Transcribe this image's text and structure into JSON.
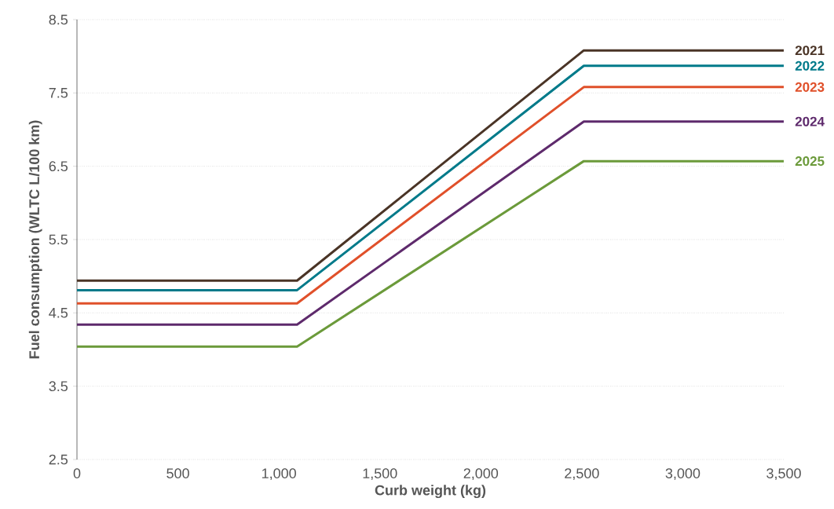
{
  "chart_data": {
    "type": "line",
    "xlabel": "Curb weight (kg)",
    "ylabel": "Fuel consumption (WLTC L/100 km)",
    "xlim": [
      0,
      3500
    ],
    "ylim": [
      2.5,
      8.5
    ],
    "xticks": [
      0,
      500,
      {
        "value": 1000,
        "label": "1,000"
      },
      {
        "value": 1500,
        "label": "1,500"
      },
      {
        "value": 2000,
        "label": "2,000"
      },
      {
        "value": 2500,
        "label": "2,500"
      },
      {
        "value": 3000,
        "label": "3,000"
      },
      {
        "value": 3500,
        "label": "3,500"
      }
    ],
    "yticks": [
      2.5,
      3.5,
      4.5,
      5.5,
      6.5,
      7.5,
      8.5
    ],
    "grid": "y",
    "legend": false,
    "marker": "none",
    "line_style": "solid",
    "series": [
      {
        "name": "2021",
        "color": "#4a3426",
        "x": [
          0,
          1090,
          2510,
          3500
        ],
        "values": [
          4.94,
          4.94,
          8.08,
          8.08
        ]
      },
      {
        "name": "2022",
        "color": "#007a8a",
        "x": [
          0,
          1090,
          2510,
          3500
        ],
        "values": [
          4.81,
          4.81,
          7.87,
          7.87
        ]
      },
      {
        "name": "2023",
        "color": "#e0502a",
        "x": [
          0,
          1090,
          2510,
          3500
        ],
        "values": [
          4.63,
          4.63,
          7.58,
          7.58
        ]
      },
      {
        "name": "2024",
        "color": "#5e2a6c",
        "x": [
          0,
          1090,
          2510,
          3500
        ],
        "values": [
          4.34,
          4.34,
          7.11,
          7.11
        ]
      },
      {
        "name": "2025",
        "color": "#6b9a3a",
        "x": [
          0,
          1090,
          2510,
          3500
        ],
        "values": [
          4.04,
          4.04,
          6.57,
          6.57
        ]
      }
    ]
  }
}
